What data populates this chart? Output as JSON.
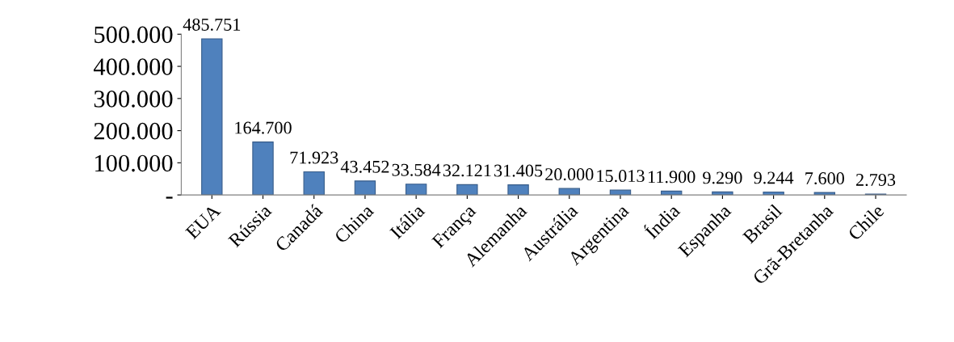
{
  "chart_data": {
    "type": "bar",
    "categories": [
      "EUA",
      "Rússia",
      "Canadá",
      "China",
      "Itália",
      "França",
      "Alemanha",
      "Austrália",
      "Argentina",
      "Índia",
      "Espanha",
      "Brasil",
      "Grã-Bretanha",
      "Chile"
    ],
    "values": [
      485751,
      164700,
      71923,
      43452,
      33584,
      32121,
      31405,
      20000,
      15013,
      11900,
      9290,
      9244,
      7600,
      2793
    ],
    "value_labels": [
      "485.751",
      "164.700",
      "71.923",
      "43.452",
      "33.584",
      "32.121",
      "31.405",
      "20.000",
      "15.013",
      "11.900",
      "9.290",
      "9.244",
      "7.600",
      "2.793"
    ],
    "color": "#4f81bd",
    "ylim": [
      0,
      500000
    ],
    "yticks": [
      {
        "value": 0,
        "label": "-"
      },
      {
        "value": 100000,
        "label": "100.000"
      },
      {
        "value": 200000,
        "label": "200.000"
      },
      {
        "value": 300000,
        "label": "300.000"
      },
      {
        "value": 400000,
        "label": "400.000"
      },
      {
        "value": 500000,
        "label": "500.000"
      }
    ],
    "grid": false,
    "legend": false
  }
}
